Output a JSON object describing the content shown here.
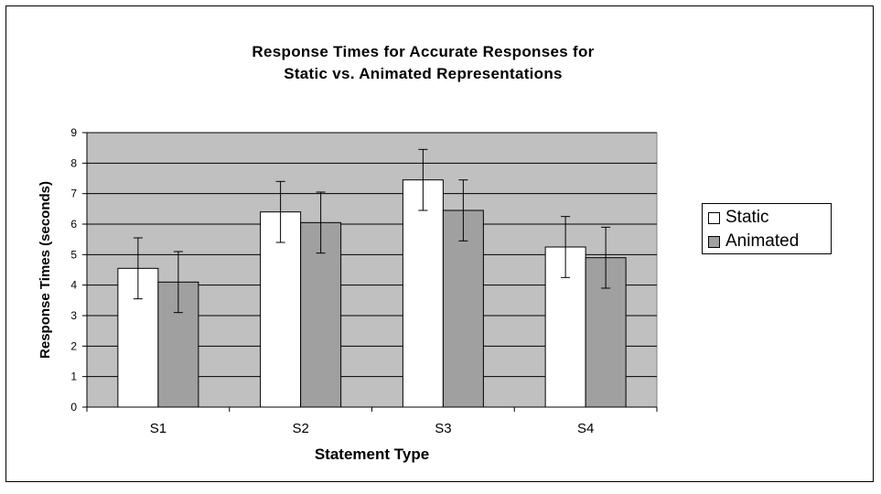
{
  "chart_data": {
    "type": "bar",
    "title": "Response Times for Accurate Responses for",
    "subtitle": "Static vs. Animated Representations",
    "xlabel": "Statement Type",
    "ylabel": "Response Times (seconds)",
    "categories": [
      "S1",
      "S2",
      "S3",
      "S4"
    ],
    "ylim": [
      0,
      9
    ],
    "yticks": [
      "0",
      "1",
      "2",
      "3",
      "4",
      "5",
      "6",
      "7",
      "8",
      "9"
    ],
    "grid": true,
    "legend_position": "right",
    "series": [
      {
        "name": "Static",
        "color": "#ffffff",
        "values": [
          4.55,
          6.4,
          7.45,
          5.25
        ],
        "error": [
          1.0,
          1.0,
          1.0,
          1.0
        ]
      },
      {
        "name": "Animated",
        "color": "#a0a0a0",
        "values": [
          4.1,
          6.05,
          6.45,
          4.9
        ],
        "error": [
          1.0,
          1.0,
          1.0,
          1.0
        ]
      }
    ],
    "plot_background": "#c0c0c0"
  }
}
